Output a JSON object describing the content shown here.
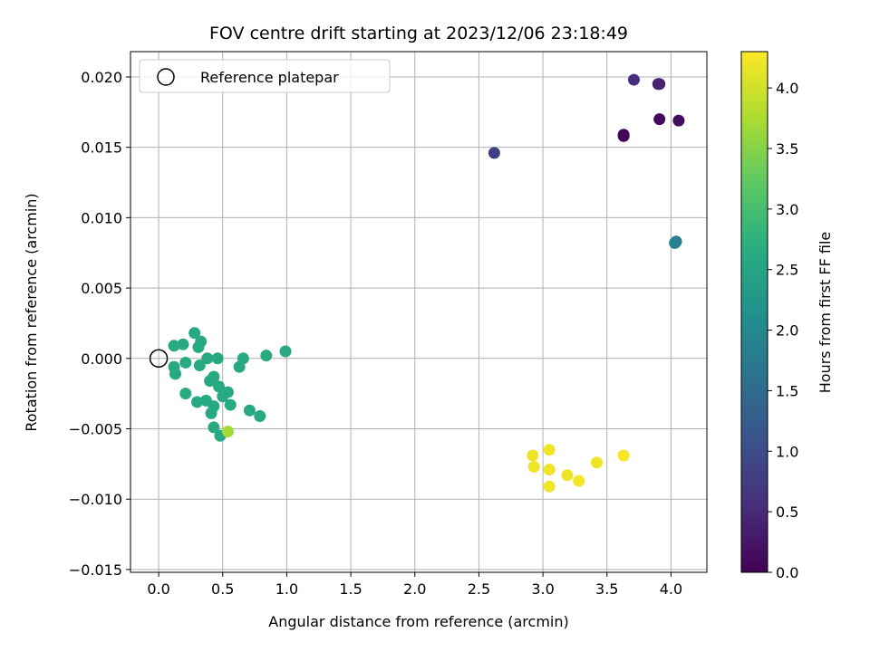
{
  "chart_data": {
    "type": "scatter",
    "title": "FOV centre drift starting at 2023/12/06 23:18:49",
    "xlabel": "Angular distance from reference (arcmin)",
    "ylabel": "Rotation from reference (arcmin)",
    "xlim": [
      -0.22,
      4.28
    ],
    "ylim": [
      -0.0152,
      0.0218
    ],
    "xticks": [
      0.0,
      0.5,
      1.0,
      1.5,
      2.0,
      2.5,
      3.0,
      3.5,
      4.0
    ],
    "xtick_labels": [
      "0.0",
      "0.5",
      "1.0",
      "1.5",
      "2.0",
      "2.5",
      "3.0",
      "3.5",
      "4.0"
    ],
    "yticks": [
      -0.015,
      -0.01,
      -0.005,
      0.0,
      0.005,
      0.01,
      0.015,
      0.02
    ],
    "ytick_labels": [
      "−0.015",
      "−0.010",
      "−0.005",
      "0.000",
      "0.005",
      "0.010",
      "0.015",
      "0.020"
    ],
    "grid": true,
    "legend": {
      "position": "top-left",
      "entries": [
        "Reference platepar"
      ]
    },
    "colormap": "viridis",
    "colorbar": {
      "label": "Hours from first FF file",
      "range": [
        0.0,
        4.3
      ],
      "ticks": [
        0.0,
        0.5,
        1.0,
        1.5,
        2.0,
        2.5,
        3.0,
        3.5,
        4.0
      ],
      "tick_labels": [
        "0.0",
        "0.5",
        "1.0",
        "1.5",
        "2.0",
        "2.5",
        "3.0",
        "3.5",
        "4.0"
      ]
    },
    "reference": {
      "x": 0.0,
      "y": 0.0
    },
    "points": [
      {
        "x": 3.63,
        "y": 0.0158,
        "c": 0.03
      },
      {
        "x": 3.63,
        "y": 0.0159,
        "c": 0.05
      },
      {
        "x": 3.91,
        "y": 0.017,
        "c": 0.1
      },
      {
        "x": 4.06,
        "y": 0.0169,
        "c": 0.12
      },
      {
        "x": 3.9,
        "y": 0.0195,
        "c": 0.35
      },
      {
        "x": 3.91,
        "y": 0.0195,
        "c": 0.4
      },
      {
        "x": 3.71,
        "y": 0.0198,
        "c": 0.55
      },
      {
        "x": 2.62,
        "y": 0.0146,
        "c": 0.8
      },
      {
        "x": 4.04,
        "y": 0.0083,
        "c": 1.8
      },
      {
        "x": 4.03,
        "y": 0.0082,
        "c": 1.85
      },
      {
        "x": 0.99,
        "y": 0.0005,
        "c": 2.6
      },
      {
        "x": 0.84,
        "y": 0.0002,
        "c": 2.6
      },
      {
        "x": 0.66,
        "y": 0.0,
        "c": 2.6
      },
      {
        "x": 0.63,
        "y": -0.0006,
        "c": 2.6
      },
      {
        "x": 0.28,
        "y": 0.0018,
        "c": 2.6
      },
      {
        "x": 0.33,
        "y": 0.0012,
        "c": 2.6
      },
      {
        "x": 0.19,
        "y": 0.001,
        "c": 2.6
      },
      {
        "x": 0.12,
        "y": 0.0009,
        "c": 2.6
      },
      {
        "x": 0.31,
        "y": 0.0008,
        "c": 2.6
      },
      {
        "x": 0.38,
        "y": 0.0,
        "c": 2.6
      },
      {
        "x": 0.46,
        "y": 0.0,
        "c": 2.6
      },
      {
        "x": 0.21,
        "y": -0.0003,
        "c": 2.6
      },
      {
        "x": 0.32,
        "y": -0.0005,
        "c": 2.6
      },
      {
        "x": 0.12,
        "y": -0.0006,
        "c": 2.6
      },
      {
        "x": 0.13,
        "y": -0.0011,
        "c": 2.6
      },
      {
        "x": 0.43,
        "y": -0.0013,
        "c": 2.6
      },
      {
        "x": 0.4,
        "y": -0.0016,
        "c": 2.6
      },
      {
        "x": 0.47,
        "y": -0.002,
        "c": 2.6
      },
      {
        "x": 0.21,
        "y": -0.0025,
        "c": 2.6
      },
      {
        "x": 0.54,
        "y": -0.0024,
        "c": 2.6
      },
      {
        "x": 0.5,
        "y": -0.0027,
        "c": 2.6
      },
      {
        "x": 0.37,
        "y": -0.003,
        "c": 2.6
      },
      {
        "x": 0.3,
        "y": -0.0031,
        "c": 2.6
      },
      {
        "x": 0.43,
        "y": -0.0034,
        "c": 2.6
      },
      {
        "x": 0.56,
        "y": -0.0033,
        "c": 2.6
      },
      {
        "x": 0.41,
        "y": -0.0039,
        "c": 2.6
      },
      {
        "x": 0.71,
        "y": -0.0037,
        "c": 2.6
      },
      {
        "x": 0.79,
        "y": -0.0041,
        "c": 2.6
      },
      {
        "x": 0.43,
        "y": -0.0049,
        "c": 2.6
      },
      {
        "x": 0.48,
        "y": -0.0055,
        "c": 2.6
      },
      {
        "x": 0.54,
        "y": -0.0052,
        "c": 3.7
      },
      {
        "x": 3.05,
        "y": -0.0065,
        "c": 4.2
      },
      {
        "x": 2.92,
        "y": -0.0069,
        "c": 4.2
      },
      {
        "x": 3.63,
        "y": -0.0069,
        "c": 4.25
      },
      {
        "x": 3.42,
        "y": -0.0074,
        "c": 4.2
      },
      {
        "x": 2.93,
        "y": -0.0077,
        "c": 4.2
      },
      {
        "x": 3.05,
        "y": -0.0079,
        "c": 4.2
      },
      {
        "x": 3.19,
        "y": -0.0083,
        "c": 4.2
      },
      {
        "x": 3.28,
        "y": -0.0087,
        "c": 4.25
      },
      {
        "x": 3.05,
        "y": -0.0091,
        "c": 4.2
      }
    ]
  }
}
